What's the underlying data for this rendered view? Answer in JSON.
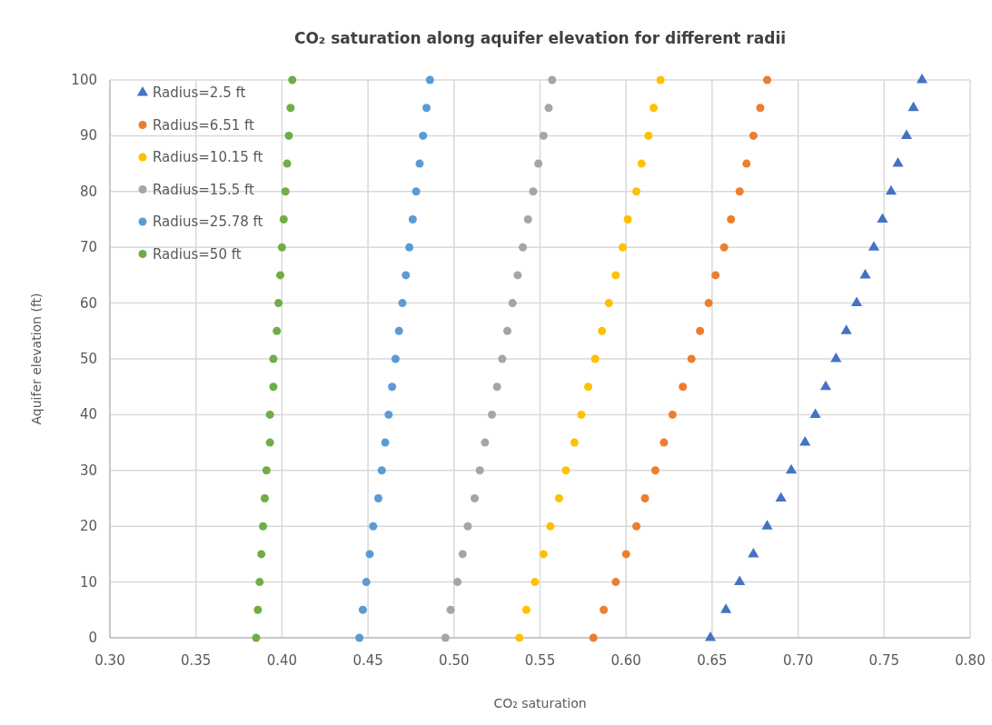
{
  "chart_data": {
    "type": "scatter",
    "title": "CO₂ saturation along aquifer elevation for different radii",
    "xlabel": "CO₂ saturation",
    "ylabel": "Aquifer elevation (ft)",
    "xlim": [
      0.3,
      0.8
    ],
    "xticks": [
      {
        "value": 0.3,
        "label": "0.30"
      },
      {
        "value": 0.35,
        "label": "0.35"
      },
      {
        "value": 0.4,
        "label": "0.40"
      },
      {
        "value": 0.45,
        "label": "0.45"
      },
      {
        "value": 0.5,
        "label": "0.50"
      },
      {
        "value": 0.55,
        "label": "0.55"
      },
      {
        "value": 0.6,
        "label": "0.60"
      },
      {
        "value": 0.65,
        "label": "0.65"
      },
      {
        "value": 0.7,
        "label": "0.70"
      },
      {
        "value": 0.75,
        "label": "0.75"
      },
      {
        "value": 0.8,
        "label": "0.80"
      }
    ],
    "ylim": [
      0,
      100
    ],
    "yticks": [
      0,
      10,
      20,
      30,
      40,
      50,
      60,
      70,
      80,
      90,
      100
    ],
    "grid": true,
    "legend": "top left",
    "series": [
      {
        "name": "Radius=2.5 ft",
        "color": "#4472c4",
        "marker": "triangle",
        "x": [
          0.649,
          0.658,
          0.666,
          0.674,
          0.682,
          0.69,
          0.696,
          0.704,
          0.71,
          0.716,
          0.722,
          0.728,
          0.734,
          0.739,
          0.744,
          0.749,
          0.754,
          0.758,
          0.763,
          0.767,
          0.772
        ],
        "values": [
          0,
          5,
          10,
          15,
          20,
          25,
          30,
          35,
          40,
          45,
          50,
          55,
          60,
          65,
          70,
          75,
          80,
          85,
          90,
          95,
          100
        ]
      },
      {
        "name": "Radius=6.51 ft",
        "color": "#ed7d31",
        "marker": "circle",
        "x": [
          0.581,
          0.587,
          0.594,
          0.6,
          0.606,
          0.611,
          0.617,
          0.622,
          0.627,
          0.633,
          0.638,
          0.643,
          0.648,
          0.652,
          0.657,
          0.661,
          0.666,
          0.67,
          0.674,
          0.678,
          0.682
        ],
        "values": [
          0,
          5,
          10,
          15,
          20,
          25,
          30,
          35,
          40,
          45,
          50,
          55,
          60,
          65,
          70,
          75,
          80,
          85,
          90,
          95,
          100
        ]
      },
      {
        "name": "Radius=10.15 ft",
        "color": "#ffc000",
        "marker": "circle",
        "x": [
          0.538,
          0.542,
          0.547,
          0.552,
          0.556,
          0.561,
          0.565,
          0.57,
          0.574,
          0.578,
          0.582,
          0.586,
          0.59,
          0.594,
          0.598,
          0.601,
          0.606,
          0.609,
          0.613,
          0.616,
          0.62
        ],
        "values": [
          0,
          5,
          10,
          15,
          20,
          25,
          30,
          35,
          40,
          45,
          50,
          55,
          60,
          65,
          70,
          75,
          80,
          85,
          90,
          95,
          100
        ]
      },
      {
        "name": "Radius=15.5 ft",
        "color": "#a5a5a5",
        "marker": "circle",
        "x": [
          0.495,
          0.498,
          0.502,
          0.505,
          0.508,
          0.512,
          0.515,
          0.518,
          0.522,
          0.525,
          0.528,
          0.531,
          0.534,
          0.537,
          0.54,
          0.543,
          0.546,
          0.549,
          0.552,
          0.555,
          0.557
        ],
        "values": [
          0,
          5,
          10,
          15,
          20,
          25,
          30,
          35,
          40,
          45,
          50,
          55,
          60,
          65,
          70,
          75,
          80,
          85,
          90,
          95,
          100
        ]
      },
      {
        "name": "Radius=25.78 ft",
        "color": "#5b9bd5",
        "marker": "circle",
        "x": [
          0.445,
          0.447,
          0.449,
          0.451,
          0.453,
          0.456,
          0.458,
          0.46,
          0.462,
          0.464,
          0.466,
          0.468,
          0.47,
          0.472,
          0.474,
          0.476,
          0.478,
          0.48,
          0.482,
          0.484,
          0.486
        ],
        "values": [
          0,
          5,
          10,
          15,
          20,
          25,
          30,
          35,
          40,
          45,
          50,
          55,
          60,
          65,
          70,
          75,
          80,
          85,
          90,
          95,
          100
        ]
      },
      {
        "name": "Radius=50 ft",
        "color": "#70ad47",
        "marker": "circle",
        "x": [
          0.385,
          0.386,
          0.387,
          0.388,
          0.389,
          0.39,
          0.391,
          0.393,
          0.393,
          0.395,
          0.395,
          0.397,
          0.398,
          0.399,
          0.4,
          0.401,
          0.402,
          0.403,
          0.404,
          0.405,
          0.406
        ],
        "values": [
          0,
          5,
          10,
          15,
          20,
          25,
          30,
          35,
          40,
          45,
          50,
          55,
          60,
          65,
          70,
          75,
          80,
          85,
          90,
          95,
          100
        ]
      }
    ]
  }
}
